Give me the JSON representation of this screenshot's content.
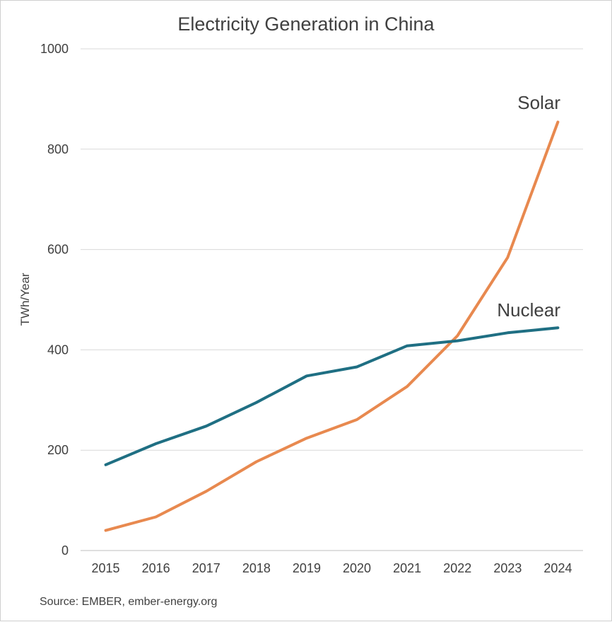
{
  "chart_data": {
    "type": "line",
    "title": "Electricity Generation in China",
    "ylabel": "TWh/Year",
    "xlabel": "",
    "x": [
      "2015",
      "2016",
      "2017",
      "2018",
      "2019",
      "2020",
      "2021",
      "2022",
      "2023",
      "2024"
    ],
    "ylim": [
      0,
      1000
    ],
    "yticks": [
      "0",
      "200",
      "400",
      "600",
      "800",
      "1000"
    ],
    "grid": true,
    "series": [
      {
        "name": "Solar",
        "color": "#e8894f",
        "values": [
          40,
          67,
          118,
          177,
          224,
          261,
          327,
          428,
          584,
          854
        ]
      },
      {
        "name": "Nuclear",
        "color": "#1f6f83",
        "values": [
          171,
          213,
          248,
          295,
          348,
          366,
          408,
          418,
          434,
          444
        ]
      }
    ],
    "source": "Source: EMBER, ember-energy.org"
  }
}
